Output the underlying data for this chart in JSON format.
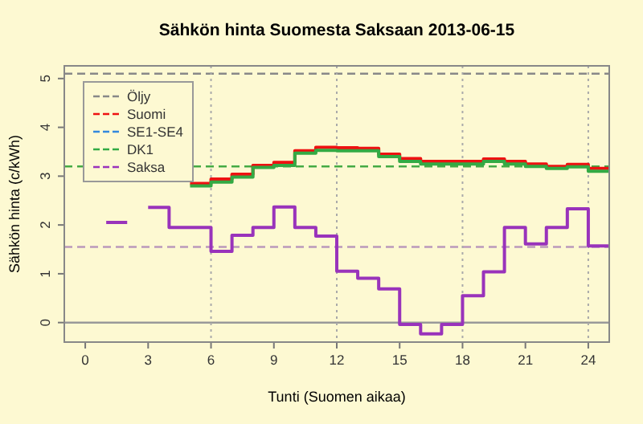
{
  "chart_data": {
    "type": "step",
    "title": "Sähkön hinta Suomesta Saksaan 2013-06-15",
    "xlabel": "Tunti (Suomen aikaa)",
    "ylabel": "Sähkön hinta (c/kWh)",
    "x": [
      1,
      2,
      3,
      4,
      5,
      6,
      7,
      8,
      9,
      10,
      11,
      12,
      13,
      14,
      15,
      16,
      17,
      18,
      19,
      20,
      21,
      22,
      23,
      24,
      25
    ],
    "xlim": [
      -1,
      25
    ],
    "xticks": [
      0,
      3,
      6,
      9,
      12,
      15,
      18,
      21,
      24
    ],
    "ylim": [
      -0.4,
      5.26
    ],
    "yticks": [
      0,
      1,
      2,
      3,
      4,
      5
    ],
    "series": [
      {
        "name": "Suomi",
        "color": "#ee1111",
        "values": [
          null,
          null,
          null,
          null,
          2.85,
          2.94,
          3.04,
          3.22,
          3.28,
          3.52,
          3.59,
          3.58,
          3.57,
          3.45,
          3.36,
          3.3,
          3.3,
          3.3,
          3.35,
          3.3,
          3.25,
          3.2,
          3.24,
          3.16,
          3.16
        ]
      },
      {
        "name": "SE1-SE4",
        "color": "#3388dd",
        "values": [
          null,
          null,
          null,
          null,
          null,
          null,
          null,
          null,
          null,
          null,
          null,
          null,
          null,
          null,
          null,
          null,
          null,
          null,
          null,
          null,
          null,
          null,
          null,
          null,
          null
        ]
      },
      {
        "name": "DK1",
        "color": "#33aa44",
        "values": [
          null,
          null,
          null,
          null,
          2.8,
          2.88,
          2.98,
          3.18,
          3.22,
          3.47,
          3.53,
          3.52,
          3.52,
          3.4,
          3.3,
          3.25,
          3.25,
          3.25,
          3.3,
          3.25,
          3.2,
          3.16,
          3.19,
          3.1,
          3.1
        ]
      },
      {
        "name": "Saksa",
        "color": "#9933bb",
        "values": [
          2.05,
          null,
          2.36,
          1.95,
          1.95,
          1.46,
          1.79,
          1.95,
          2.37,
          1.95,
          1.77,
          1.05,
          0.91,
          0.69,
          -0.04,
          -0.23,
          -0.04,
          0.55,
          1.04,
          1.95,
          1.61,
          1.95,
          2.33,
          1.57,
          1.57
        ]
      }
    ],
    "ref_lines": [
      {
        "axis": "y",
        "value": 5.1,
        "label": "Öljy",
        "color": "#888888",
        "line_style": "dashed"
      },
      {
        "axis": "y",
        "value": 3.2,
        "color": "#44aa44",
        "line_style": "dashed"
      },
      {
        "axis": "y",
        "value": 1.55,
        "color": "#bb99bb",
        "line_style": "dashed"
      },
      {
        "axis": "y",
        "value": 0,
        "color": "#999999",
        "line_style": "solid"
      },
      {
        "axis": "x",
        "value": 6,
        "color": "#aaaaaa",
        "line_style": "dotted"
      },
      {
        "axis": "x",
        "value": 12,
        "color": "#aaaaaa",
        "line_style": "dotted"
      },
      {
        "axis": "x",
        "value": 18,
        "color": "#aaaaaa",
        "line_style": "dotted"
      },
      {
        "axis": "x",
        "value": 24,
        "color": "#aaaaaa",
        "line_style": "dotted"
      }
    ],
    "legend": "top left"
  }
}
